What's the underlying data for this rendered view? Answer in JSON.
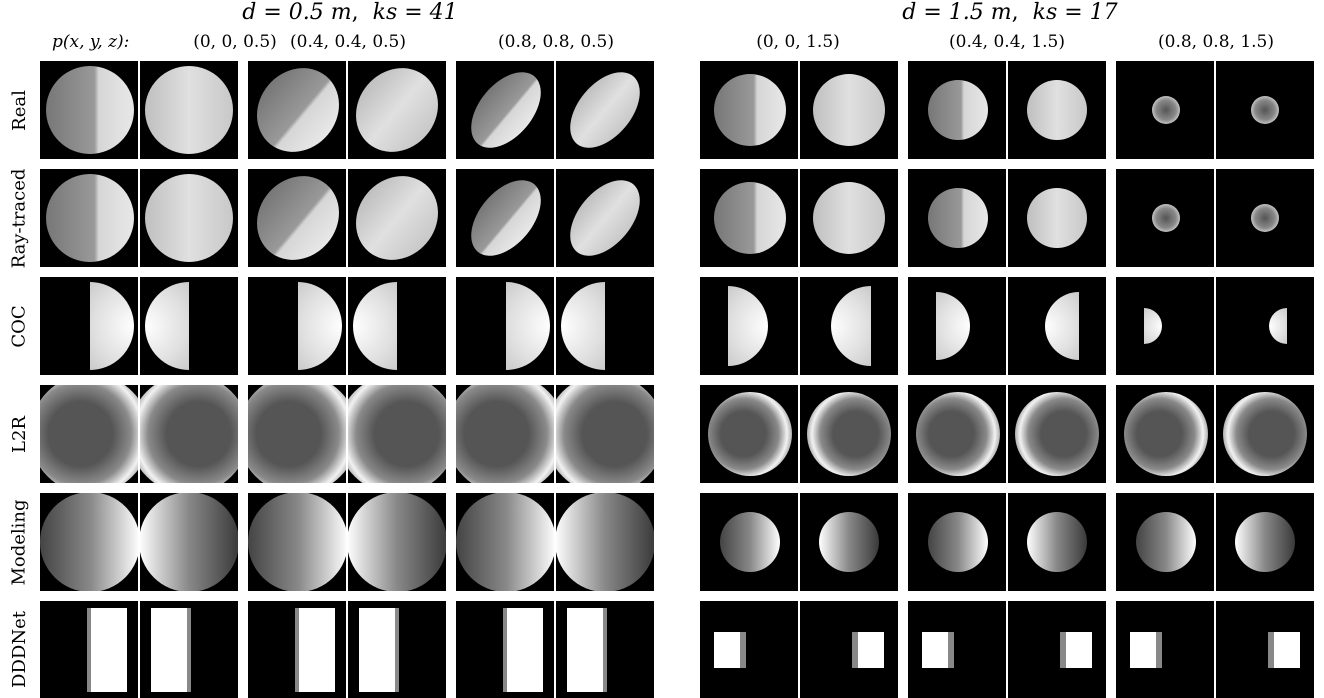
{
  "titles": {
    "left": {
      "d": "d = 0.5 m",
      "ks": "ks = 41"
    },
    "right": {
      "d": "d = 1.5 m",
      "ks": "ks = 17"
    }
  },
  "position_label": "p(x, y, z):",
  "columns": [
    "(0, 0, 0.5)",
    "(0.4, 0.4, 0.5)",
    "(0.8, 0.8, 0.5)",
    "(0, 0, 1.5)",
    "(0.4, 0.4, 1.5)",
    "(0.8, 0.8, 1.5)"
  ],
  "rows": [
    "Real",
    "Ray-traced",
    "COC",
    "L2R",
    "Modeling",
    "DDDNet"
  ]
}
